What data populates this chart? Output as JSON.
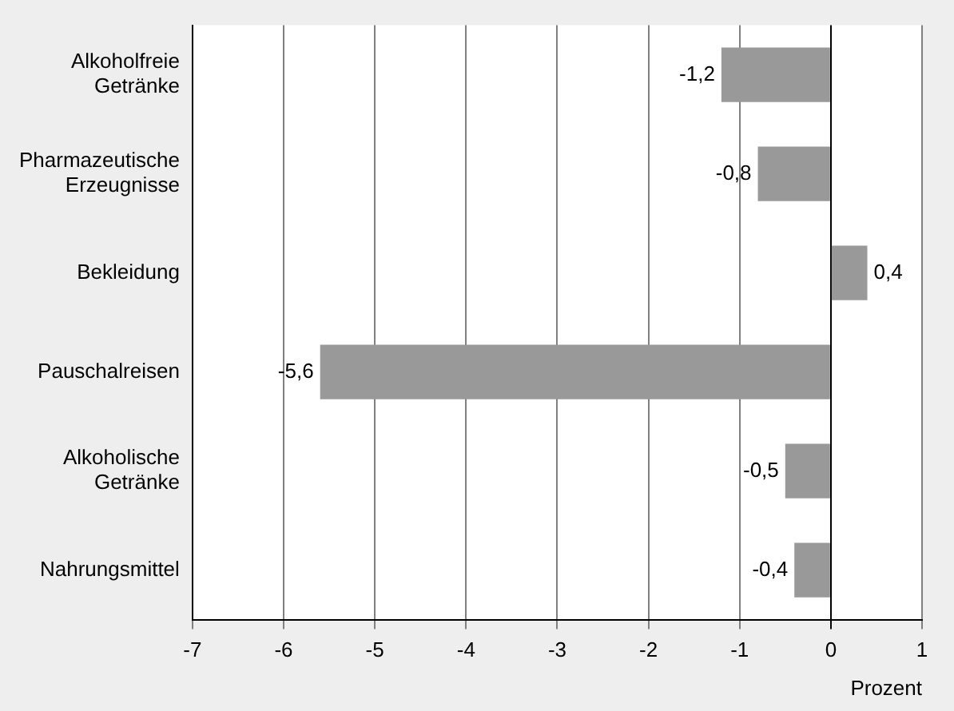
{
  "chart_data": {
    "type": "bar",
    "orientation": "horizontal",
    "categories": [
      "Alkoholfreie Getränke",
      "Pharmazeutische Erzeugnisse",
      "Bekleidung",
      "Pauschalreisen",
      "Alkoholische Getränke",
      "Nahrungsmittel"
    ],
    "values": [
      -1.2,
      -0.8,
      0.4,
      -5.6,
      -0.5,
      -0.4
    ],
    "value_labels": [
      "-1,2",
      "-0,8",
      "0,4",
      "-5,6",
      "-0,5",
      "-0,4"
    ],
    "color": "#999999",
    "xlim": [
      -7,
      1
    ],
    "xticks": [
      -7,
      -6,
      -5,
      -4,
      -3,
      -2,
      -1,
      0,
      1
    ],
    "xlabel": "Prozent",
    "grid": "x",
    "legend": false
  }
}
